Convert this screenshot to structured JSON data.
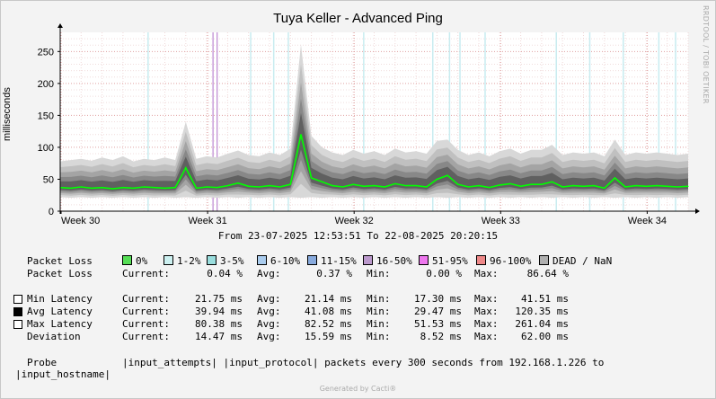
{
  "title": "Tuya Keller - Advanced Ping",
  "watermark": "RRDTOOL / TOBI OETIKER",
  "ylabel": "milliseconds",
  "range": "From 23-07-2025 12:53:51 To 22-08-2025 20:20:15",
  "footer": "Generated by Cacti®",
  "colors": {
    "avg_line": "#00ff00",
    "grid": "#e0b0b0",
    "dead": "#b0b0b0"
  },
  "loss_legend": {
    "title": "Packet Loss",
    "items": [
      {
        "label": "0%",
        "color": "#55dd55"
      },
      {
        "label": "1-2%",
        "color": "#ccf0f0"
      },
      {
        "label": "3-5%",
        "color": "#99dddd"
      },
      {
        "label": "6-10%",
        "color": "#aaccee"
      },
      {
        "label": "11-15%",
        "color": "#88aadd"
      },
      {
        "label": "16-50%",
        "color": "#bb99cc"
      },
      {
        "label": "51-95%",
        "color": "#ee77ee"
      },
      {
        "label": "96-100%",
        "color": "#ee8888"
      },
      {
        "label": "DEAD / NaN",
        "color": "#b0b0b0"
      }
    ]
  },
  "stats_rows": [
    {
      "label": "Packet Loss",
      "swatch": null,
      "current": "0.04 %",
      "avg": "0.37 %",
      "min": "0.00 %",
      "max": "86.64 %"
    },
    {
      "label": "Min Latency",
      "swatch": "#ffffff",
      "current": "21.75 ms",
      "avg": "21.14 ms",
      "min": "17.30 ms",
      "max": "41.51 ms"
    },
    {
      "label": "Avg Latency",
      "swatch": "#000000",
      "current": "39.94 ms",
      "avg": "41.08 ms",
      "min": "29.47 ms",
      "max": "120.35 ms"
    },
    {
      "label": "Max Latency",
      "swatch": "#ffffff",
      "current": "80.38 ms",
      "avg": "82.52 ms",
      "min": "51.53 ms",
      "max": "261.04 ms"
    },
    {
      "label": "Deviation",
      "swatch": null,
      "current": "14.47 ms",
      "avg": "15.59 ms",
      "min": "8.52 ms",
      "max": "62.00 ms"
    }
  ],
  "stat_headers": {
    "current": "Current:",
    "avg": "Avg:",
    "min": "Min:",
    "max": "Max:"
  },
  "probe_line1": "Probe           |input_attempts| |input_protocol| packets every 300 seconds from 192.168.1.226 to",
  "probe_line2": "|input_hostname|",
  "chart_data": {
    "type": "area",
    "ylabel": "milliseconds",
    "ylim": [
      0,
      280
    ],
    "yticks": [
      0,
      50,
      100,
      150,
      200,
      250
    ],
    "xticks": [
      "Week 30",
      "Week 31",
      "Week 32",
      "Week 33",
      "Week 34"
    ],
    "grid": true,
    "x_days": [
      0,
      0.5,
      1,
      1.5,
      2,
      2.5,
      3,
      3.5,
      4,
      4.5,
      5,
      5.5,
      6,
      6.5,
      7,
      7.5,
      8,
      8.5,
      9,
      9.5,
      10,
      10.5,
      11,
      11.5,
      12,
      12.5,
      13,
      13.5,
      14,
      14.5,
      15,
      15.5,
      16,
      16.5,
      17,
      17.5,
      18,
      18.5,
      19,
      19.5,
      20,
      20.5,
      21,
      21.5,
      22,
      22.5,
      23,
      23.5,
      24,
      24.5,
      25,
      25.5,
      26,
      26.5,
      27,
      27.5,
      28,
      28.5,
      29,
      29.5,
      30
    ],
    "series": [
      {
        "name": "Avg Latency",
        "values": [
          37,
          36,
          38,
          36,
          37,
          35,
          37,
          36,
          38,
          37,
          36,
          37,
          68,
          36,
          38,
          37,
          40,
          44,
          39,
          38,
          40,
          38,
          42,
          120,
          52,
          46,
          40,
          38,
          42,
          39,
          40,
          38,
          43,
          40,
          40,
          38,
          50,
          56,
          42,
          38,
          40,
          37,
          41,
          43,
          39,
          42,
          42,
          46,
          38,
          40,
          39,
          40,
          36,
          52,
          38,
          40,
          39,
          40,
          39,
          38,
          39
        ]
      },
      {
        "name": "Min Latency",
        "values": [
          22,
          21,
          22,
          21,
          22,
          21,
          22,
          21,
          22,
          21,
          22,
          21,
          22,
          21,
          22,
          21,
          22,
          21,
          22,
          21,
          22,
          21,
          22,
          21,
          22,
          21,
          22,
          21,
          22,
          21,
          22,
          21,
          22,
          21,
          22,
          21,
          22,
          21,
          22,
          21,
          22,
          21,
          22,
          21,
          22,
          21,
          22,
          21,
          22,
          21,
          22,
          21,
          22,
          21,
          22,
          21,
          22,
          21,
          22,
          21,
          22
        ]
      },
      {
        "name": "Max Latency",
        "values": [
          78,
          80,
          82,
          79,
          84,
          80,
          86,
          78,
          82,
          80,
          84,
          80,
          140,
          82,
          86,
          84,
          90,
          95,
          88,
          86,
          92,
          88,
          98,
          261,
          118,
          100,
          92,
          88,
          96,
          90,
          94,
          88,
          98,
          92,
          94,
          90,
          110,
          112,
          96,
          88,
          92,
          86,
          94,
          98,
          90,
          96,
          96,
          104,
          88,
          92,
          90,
          92,
          86,
          112,
          88,
          92,
          90,
          92,
          90,
          88,
          90
        ]
      }
    ]
  }
}
